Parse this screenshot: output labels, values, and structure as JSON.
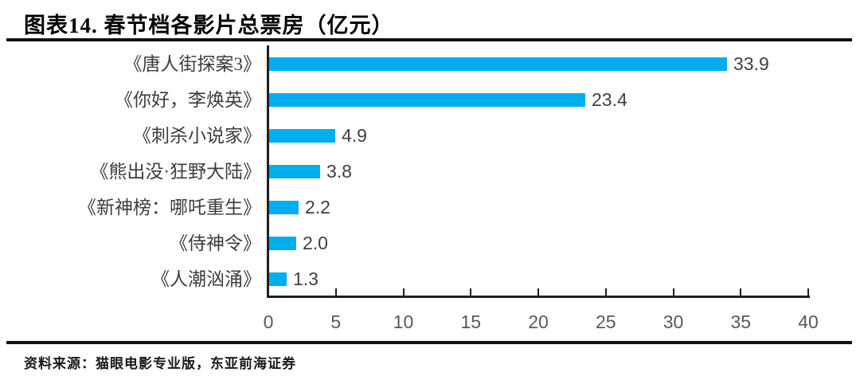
{
  "header": {
    "title": "图表14.  春节档各影片总票房（亿元）"
  },
  "chart_data": {
    "type": "bar",
    "orientation": "horizontal",
    "figure_label": "图表14.",
    "title": "春节档各影片总票房（亿元）",
    "categories": [
      "《唐人街探案3》",
      "《你好，李焕英》",
      "《刺杀小说家》",
      "《熊出没·狂野大陆》",
      "《新神榜：哪吒重生》",
      "《侍神令》",
      "《人潮汹涌》"
    ],
    "values": [
      33.9,
      23.4,
      4.9,
      3.8,
      2.2,
      2.0,
      1.3
    ],
    "value_labels": [
      "33.9",
      "23.4",
      "4.9",
      "3.8",
      "2.2",
      "2.0",
      "1.3"
    ],
    "xlim": [
      0,
      40
    ],
    "x_ticks": [
      0,
      5,
      10,
      15,
      20,
      25,
      30,
      35,
      40
    ],
    "grid": false,
    "legend": "none",
    "bar_color": "#00AEEF",
    "value_label_color": "#404040",
    "tick_label_color": "#595959",
    "axis_color": "#1f1f1f"
  },
  "footer": {
    "source": "资料来源：猫眼电影专业版，东亚前海证券"
  }
}
